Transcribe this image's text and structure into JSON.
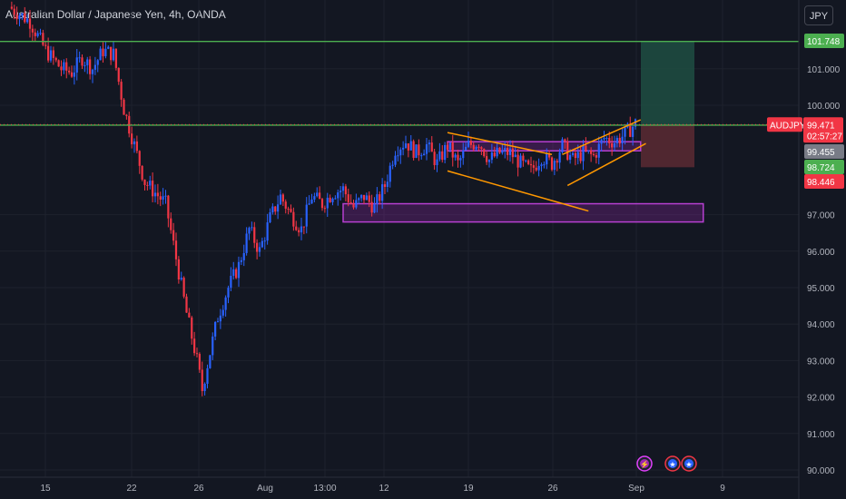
{
  "header": {
    "symbol_title": "Australian Dollar / Japanese Yen, 4h, OANDA",
    "currency_button": "JPY"
  },
  "colors": {
    "background": "#131722",
    "up": "#2962ff",
    "down": "#f23645",
    "level_line": "#4caf50",
    "pattern_line": "#ff9800",
    "zone": "#9c27b0",
    "target_zone": "#1e4d42",
    "stop_zone": "#5c2a33"
  },
  "chart_data": {
    "type": "candlestick",
    "symbol": "AUDJPY",
    "timeframe": "4h",
    "y_ticks": [
      "90.000",
      "91.000",
      "92.000",
      "93.000",
      "94.000",
      "95.000",
      "96.000",
      "97.000",
      "100.000",
      "101.000"
    ],
    "x_ticks": [
      "15",
      "22",
      "26",
      "Aug",
      "13:00",
      "12",
      "19",
      "26",
      "Sep",
      "9"
    ],
    "price_path": [
      [
        0,
        102.7
      ],
      [
        4,
        102.3
      ],
      [
        7,
        101.5
      ],
      [
        10,
        101.0
      ],
      [
        12,
        100.9
      ],
      [
        14,
        101.3
      ],
      [
        16,
        101.0
      ],
      [
        18,
        101.5
      ],
      [
        20,
        101.4
      ],
      [
        22,
        99.9
      ],
      [
        24,
        98.9
      ],
      [
        26,
        97.9
      ],
      [
        28,
        97.6
      ],
      [
        30,
        97.3
      ],
      [
        32,
        95.8
      ],
      [
        34,
        94.3
      ],
      [
        36,
        93.0
      ],
      [
        37,
        92.2
      ],
      [
        38,
        92.9
      ],
      [
        40,
        94.2
      ],
      [
        42,
        95.0
      ],
      [
        44,
        95.6
      ],
      [
        46,
        96.6
      ],
      [
        48,
        96.0
      ],
      [
        50,
        96.9
      ],
      [
        52,
        97.5
      ],
      [
        54,
        97.0
      ],
      [
        56,
        96.6
      ],
      [
        58,
        97.5
      ],
      [
        60,
        97.3
      ],
      [
        62,
        97.6
      ],
      [
        64,
        97.7
      ],
      [
        66,
        97.2
      ],
      [
        68,
        97.5
      ],
      [
        70,
        97.2
      ],
      [
        72,
        97.8
      ],
      [
        74,
        98.8
      ],
      [
        76,
        99.0
      ],
      [
        78,
        98.7
      ],
      [
        80,
        98.9
      ],
      [
        82,
        98.4
      ],
      [
        84,
        98.9
      ],
      [
        86,
        98.4
      ],
      [
        88,
        98.9
      ],
      [
        90,
        99.0
      ],
      [
        92,
        98.5
      ],
      [
        94,
        98.7
      ],
      [
        96,
        98.7
      ],
      [
        98,
        98.4
      ],
      [
        100,
        98.2
      ],
      [
        102,
        98.6
      ],
      [
        104,
        98.4
      ],
      [
        106,
        98.9
      ],
      [
        108,
        98.5
      ],
      [
        110,
        98.7
      ],
      [
        112,
        98.6
      ],
      [
        114,
        99.1
      ],
      [
        116,
        99.0
      ],
      [
        118,
        99.2
      ],
      [
        120,
        99.5
      ]
    ],
    "levels": [
      {
        "label": "101.748",
        "price": 101.748
      },
      {
        "label": "99.455",
        "price": 99.455
      }
    ],
    "current": {
      "symbol": "AUDJPY",
      "price": "99.471",
      "countdown": "02:57:27"
    },
    "position": {
      "take_profit": 101.748,
      "entry": 99.471,
      "stop": 98.3
    },
    "price_tags": [
      {
        "label": "101.748",
        "color": "#4caf50"
      },
      {
        "label": "99.455",
        "color": "#787b86"
      },
      {
        "label": "98.724",
        "color": "#4caf50"
      },
      {
        "label": "98.446",
        "color": "#f23645"
      }
    ],
    "zones": [
      {
        "name": "demand-zone",
        "x0": 64,
        "x1": 133,
        "y0": 96.8,
        "y1": 97.3
      },
      {
        "name": "consolidation-zone",
        "x0": 84,
        "x1": 121,
        "y0": 98.75,
        "y1": 99.0
      }
    ],
    "trend_lines": [
      {
        "name": "upper-wedge-line",
        "x0": 84,
        "y0": 99.25,
        "x1": 104,
        "y1": 98.65
      },
      {
        "name": "lower-wedge-line",
        "x0": 84,
        "y0": 98.2,
        "x1": 111,
        "y1": 97.1
      },
      {
        "name": "channel-upper-line",
        "x0": 106,
        "y0": 98.65,
        "x1": 121,
        "y1": 99.6
      },
      {
        "name": "channel-lower-line",
        "x0": 107,
        "y0": 97.8,
        "x1": 122,
        "y1": 98.95
      }
    ]
  }
}
